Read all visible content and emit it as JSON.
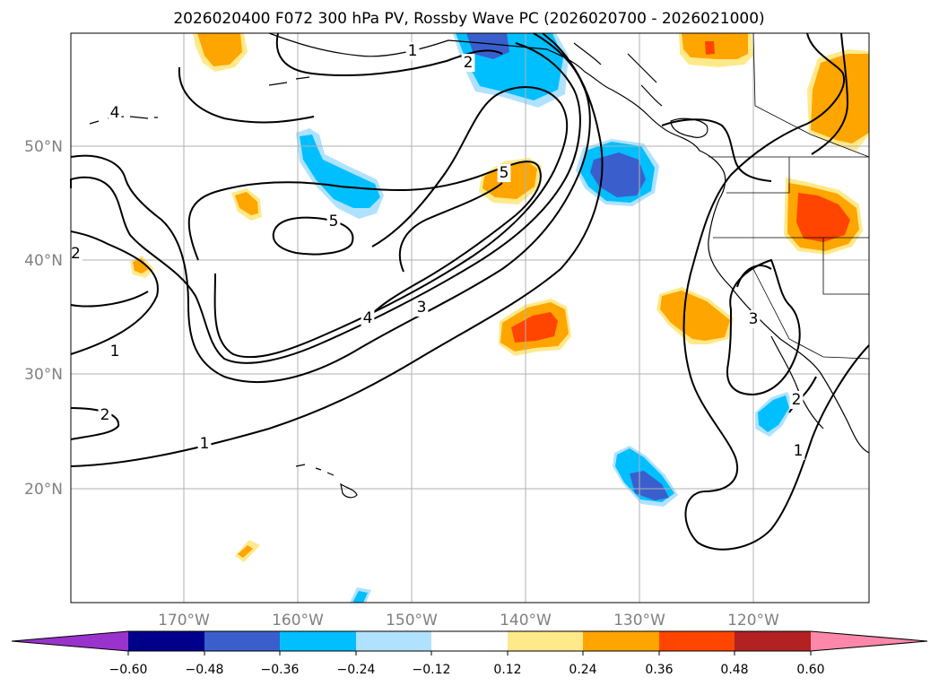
{
  "title": "2026020400 F072 300 hPa PV, Rossby Wave PC (2026020700 - 2026021000)",
  "lat_labels": [
    "50°N",
    "40°N",
    "30°N",
    "20°N"
  ],
  "lon_labels": [
    "170°W",
    "160°W",
    "150°W",
    "140°W",
    "130°W",
    "120°W"
  ],
  "colorbar": {
    "tick_labels": [
      "−0.60",
      "−0.48",
      "−0.36",
      "−0.24",
      "−0.12",
      "0.12",
      "0.24",
      "0.36",
      "0.48",
      "0.60"
    ],
    "colors": [
      "#9933cc",
      "#00008b",
      "#3a5fcd",
      "#00bfff",
      "#b0e2ff",
      "#ffffff",
      "#ffe98a",
      "#ffa500",
      "#ff4500",
      "#b22222",
      "#ff88aa"
    ]
  },
  "contour_labels": [
    "1",
    "2",
    "4",
    "5",
    "2",
    "3",
    "4",
    "5",
    "1",
    "1",
    "2",
    "3",
    "2",
    "1"
  ],
  "colors": {
    "blue_light": "#b0e2ff",
    "blue": "#00bfff",
    "blue_dark": "#3a5fcd",
    "yellow": "#ffe98a",
    "orange": "#ffa500",
    "red": "#ff4500",
    "darkred": "#b22222"
  }
}
